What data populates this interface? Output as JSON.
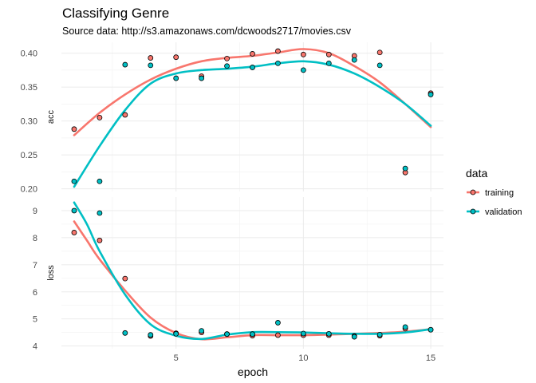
{
  "chart_data": {
    "type": "scatter",
    "title": "Classifying Genre",
    "subtitle": "Source data: http://s3.amazonaws.com/dcwoods2717/movies.csv",
    "xlabel": "epoch",
    "xlim": [
      0.5,
      15.5
    ],
    "xticks": [
      5,
      10,
      15
    ],
    "grid": true,
    "legend": {
      "title": "data",
      "placement": "right"
    },
    "series_style": [
      {
        "name": "training",
        "color": "#F8766D"
      },
      {
        "name": "validation",
        "color": "#00BFC4"
      }
    ],
    "facets": [
      {
        "name": "acc",
        "ylabel": "acc",
        "ylim": [
          0.196,
          0.416
        ],
        "yticks": [
          0.2,
          0.25,
          0.3,
          0.35,
          0.4
        ],
        "ytick_labels": [
          "0.20",
          "0.25",
          "0.30",
          "0.35",
          "0.40"
        ],
        "series": [
          {
            "name": "training",
            "x": [
              1,
              2,
              3,
              4,
              5,
              6,
              7,
              8,
              9,
              10,
              11,
              12,
              13,
              14,
              15
            ],
            "values": [
              0.288,
              0.305,
              0.309,
              0.393,
              0.394,
              0.366,
              0.392,
              0.399,
              0.403,
              0.398,
              0.398,
              0.396,
              0.401,
              0.224,
              0.341
            ]
          },
          {
            "name": "validation",
            "x": [
              1,
              2,
              3,
              4,
              5,
              6,
              7,
              8,
              9,
              10,
              11,
              12,
              13,
              14,
              15
            ],
            "values": [
              0.211,
              0.211,
              0.383,
              0.382,
              0.363,
              0.363,
              0.381,
              0.379,
              0.385,
              0.375,
              0.385,
              0.39,
              0.382,
              0.23,
              0.339
            ]
          }
        ],
        "smooth": [
          {
            "name": "training",
            "x": [
              1,
              2,
              3,
              4,
              5,
              6,
              7,
              8,
              9,
              10,
              11,
              12,
              13,
              14,
              15
            ],
            "values": [
              0.279,
              0.312,
              0.339,
              0.361,
              0.377,
              0.388,
              0.393,
              0.396,
              0.401,
              0.406,
              0.4,
              0.381,
              0.357,
              0.325,
              0.291
            ]
          },
          {
            "name": "validation",
            "x": [
              1,
              2,
              3,
              4,
              5,
              6,
              7,
              8,
              9,
              10,
              11,
              12,
              13,
              14,
              15
            ],
            "values": [
              0.203,
              0.263,
              0.316,
              0.355,
              0.37,
              0.375,
              0.377,
              0.38,
              0.385,
              0.388,
              0.383,
              0.37,
              0.35,
              0.325,
              0.293
            ]
          }
        ]
      },
      {
        "name": "loss",
        "ylabel": "loss",
        "ylim": [
          3.9,
          9.5
        ],
        "yticks": [
          4,
          5,
          6,
          7,
          8,
          9
        ],
        "ytick_labels": [
          "4",
          "5",
          "6",
          "7",
          "8",
          "9"
        ],
        "series": [
          {
            "name": "training",
            "x": [
              1,
              2,
              3,
              4,
              5,
              6,
              7,
              8,
              9,
              10,
              11,
              12,
              13,
              14,
              15
            ],
            "values": [
              8.19,
              7.9,
              6.49,
              4.37,
              4.47,
              4.5,
              4.44,
              4.38,
              4.4,
              4.4,
              4.4,
              4.37,
              4.38,
              4.64,
              4.6
            ]
          },
          {
            "name": "validation",
            "x": [
              1,
              2,
              3,
              4,
              5,
              6,
              7,
              8,
              9,
              10,
              11,
              12,
              13,
              14,
              15
            ],
            "values": [
              9.0,
              8.91,
              4.48,
              4.41,
              4.45,
              4.56,
              4.44,
              4.44,
              4.86,
              4.46,
              4.45,
              4.34,
              4.42,
              4.7,
              4.6
            ]
          }
        ],
        "smooth": [
          {
            "name": "training",
            "x": [
              1,
              1.5,
              2,
              3,
              4,
              5,
              6,
              7,
              8,
              9,
              10,
              11,
              12,
              13,
              14,
              15
            ],
            "values": [
              8.6,
              7.9,
              7.2,
              6.05,
              5.05,
              4.48,
              4.25,
              4.32,
              4.4,
              4.4,
              4.4,
              4.42,
              4.45,
              4.48,
              4.53,
              4.62
            ]
          },
          {
            "name": "validation",
            "x": [
              1,
              1.5,
              2,
              3,
              4,
              5,
              6,
              7,
              8,
              9,
              10,
              11,
              12,
              13,
              14,
              15
            ],
            "values": [
              9.3,
              8.5,
              7.5,
              5.9,
              4.8,
              4.38,
              4.26,
              4.42,
              4.51,
              4.51,
              4.5,
              4.47,
              4.45,
              4.45,
              4.5,
              4.62
            ]
          }
        ]
      }
    ]
  }
}
